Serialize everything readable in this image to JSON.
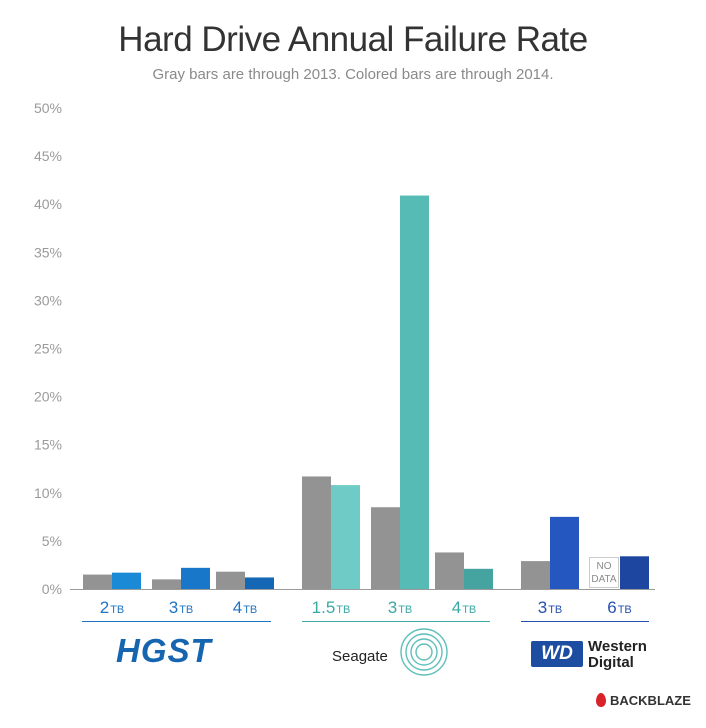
{
  "chart_data": {
    "type": "bar",
    "title": "Hard Drive Annual Failure Rate",
    "subtitle": "Gray bars are through 2013.  Colored bars are through 2014.",
    "ylim": [
      0,
      50
    ],
    "yticks": [
      "0%",
      "5%",
      "10%",
      "15%",
      "20%",
      "25%",
      "30%",
      "35%",
      "40%",
      "45%",
      "50%"
    ],
    "grid": false,
    "groups": [
      {
        "brand": "HGST",
        "items": [
          {
            "num": "2",
            "unit": "TB",
            "gray": 1.5,
            "color": 1.7
          },
          {
            "num": "3",
            "unit": "TB",
            "gray": 1.0,
            "color": 2.2
          },
          {
            "num": "4",
            "unit": "TB",
            "gray": 1.8,
            "color": 1.2
          }
        ]
      },
      {
        "brand": "Seagate",
        "items": [
          {
            "num": "1.5",
            "unit": "TB",
            "gray": 11.7,
            "color": 10.8
          },
          {
            "num": "3",
            "unit": "TB",
            "gray": 8.5,
            "color": 40.9
          },
          {
            "num": "4",
            "unit": "TB",
            "gray": 3.8,
            "color": 2.1
          }
        ]
      },
      {
        "brand": "Western Digital",
        "items": [
          {
            "num": "3",
            "unit": "TB",
            "gray": 2.9,
            "color": 7.5
          },
          {
            "num": "6",
            "unit": "TB",
            "gray": null,
            "color": 3.4
          }
        ]
      }
    ]
  },
  "logos": {
    "hgst": "HGST",
    "seagate": "Seagate",
    "wd_badge": "WD",
    "wd_line1": "Western",
    "wd_line2": "Digital",
    "backblaze": "BACKBLAZE"
  },
  "nodata": {
    "line1": "NO",
    "line2": "DATA"
  },
  "colors": {
    "gray": "#939393",
    "hgst_2tb": "#1b8ad6",
    "hgst_3tb": "#1877c8",
    "hgst_4tb": "#1467b4",
    "seagate_15tb": "#6ecbc6",
    "seagate_3tb": "#56bbb5",
    "seagate_4tb": "#45a49f",
    "wd_3tb": "#2457bf",
    "wd_6tb": "#1d46a0",
    "hgst_label": "#1f74c4",
    "seagate_label": "#3aa9a3",
    "wd_label": "#2451ad"
  }
}
